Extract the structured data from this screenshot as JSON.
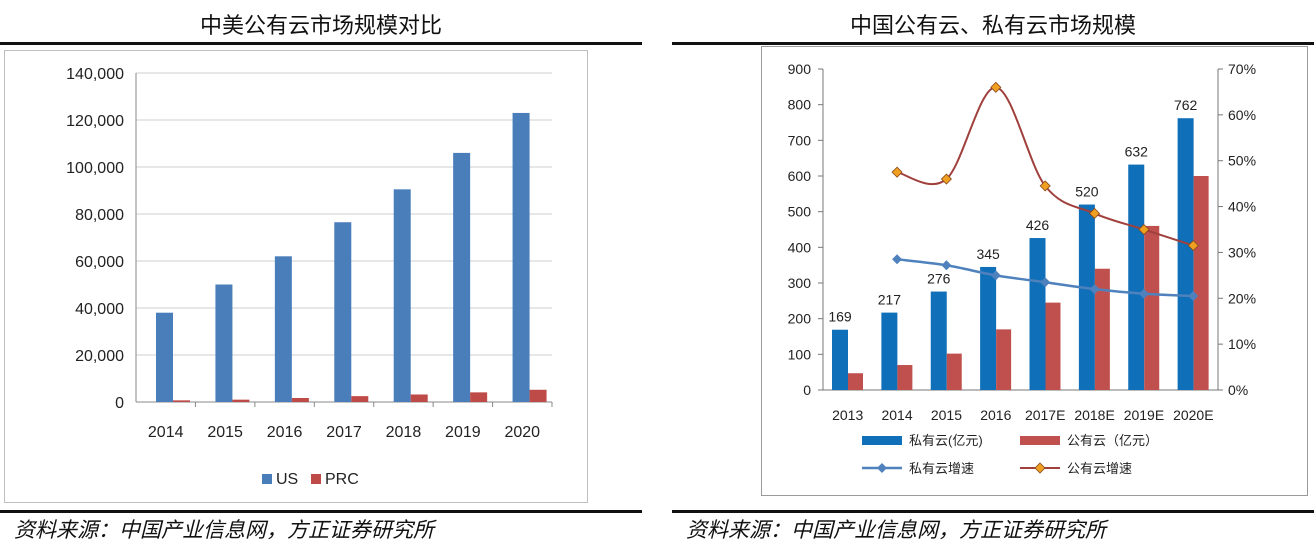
{
  "left": {
    "title": "中美公有云市场规模对比",
    "source": "资料来源：中国产业信息网，方正证券研究所"
  },
  "right": {
    "title": "中国公有云、私有云市场规模",
    "source": "资料来源：中国产业信息网，方正证券研究所"
  },
  "chart_data": [
    {
      "type": "bar",
      "title": "中美公有云市场规模对比",
      "categories": [
        "2014",
        "2015",
        "2016",
        "2017",
        "2018",
        "2019",
        "2020"
      ],
      "series": [
        {
          "name": "US",
          "values": [
            38000,
            50000,
            62000,
            76500,
            90500,
            106000,
            123000
          ]
        },
        {
          "name": "PRC",
          "values": [
            700,
            1000,
            1700,
            2500,
            3200,
            4100,
            5200
          ]
        }
      ],
      "ylim": [
        0,
        140000
      ],
      "yticks": [
        0,
        20000,
        40000,
        60000,
        80000,
        100000,
        120000,
        140000
      ],
      "ytick_labels": [
        "0",
        "20,000",
        "40,000",
        "60,000",
        "80,000",
        "100,000",
        "120,000",
        "140,000"
      ],
      "colors": {
        "US": "#4a7ebb",
        "PRC": "#be4b48"
      },
      "grid": true,
      "legend_position": "bottom",
      "xlabel": "",
      "ylabel": ""
    },
    {
      "type": "bar",
      "title": "中国公有云、私有云市场规模",
      "categories": [
        "2013",
        "2014",
        "2015",
        "2016",
        "2017E",
        "2018E",
        "2019E",
        "2020E"
      ],
      "series": [
        {
          "name": "私有云(亿元)",
          "axis": "left",
          "kind": "bar",
          "values": [
            169,
            217,
            276,
            345,
            426,
            520,
            632,
            762
          ],
          "data_labels": [
            "169",
            "217",
            "276",
            "345",
            "426",
            "520",
            "632",
            "762"
          ]
        },
        {
          "name": "公有云（亿元）",
          "axis": "left",
          "kind": "bar",
          "values": [
            47,
            70,
            102,
            170,
            245,
            340,
            460,
            600
          ]
        },
        {
          "name": "私有云增速",
          "axis": "right",
          "kind": "line",
          "values": [
            null,
            0.285,
            0.272,
            0.25,
            0.235,
            0.22,
            0.21,
            0.205
          ]
        },
        {
          "name": "公有云增速",
          "axis": "right",
          "kind": "line",
          "values": [
            null,
            0.475,
            0.46,
            0.66,
            0.445,
            0.385,
            0.35,
            0.315
          ]
        }
      ],
      "ylim_left": [
        0,
        900
      ],
      "yticks_left": [
        "0",
        "100",
        "200",
        "300",
        "400",
        "500",
        "600",
        "700",
        "800",
        "900"
      ],
      "ylim_right": [
        0,
        0.7
      ],
      "yticks_right": [
        "0%",
        "10%",
        "20%",
        "30%",
        "40%",
        "50%",
        "60%",
        "70%"
      ],
      "colors": {
        "private_bar": "#0f6fb8",
        "public_bar": "#c0504d",
        "private_line": "#4f81bd",
        "public_line": "#a0403c",
        "public_marker": "#f0a020"
      },
      "legend_position": "bottom",
      "xlabel": "",
      "ylabel": ""
    }
  ]
}
